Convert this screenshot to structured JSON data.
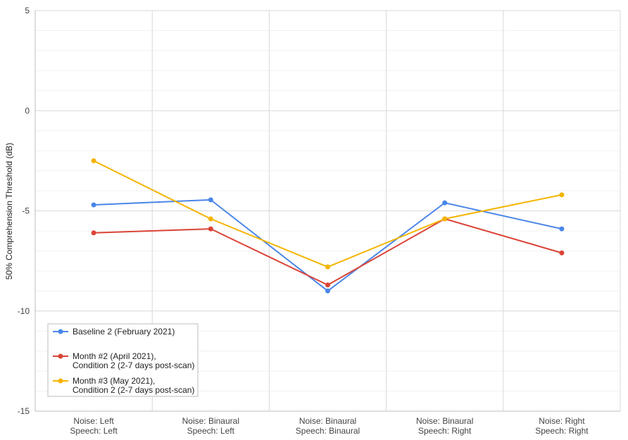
{
  "chart_data": {
    "type": "line",
    "categories": [
      [
        "Noise: Left",
        "Speech: Left"
      ],
      [
        "Noise: Binaural",
        "Speech: Left"
      ],
      [
        "Noise: Binaural",
        "Speech: Binaural"
      ],
      [
        "Noise: Binaural",
        "Speech: Right"
      ],
      [
        "Noise: Right",
        "Speech: Right"
      ]
    ],
    "ylabel": "50% Comprehension  Threshold  (dB)",
    "xlabel": "",
    "ylim": [
      -15,
      5
    ],
    "yticks": [
      "5",
      "0",
      "-5",
      "-10",
      "-15"
    ],
    "ytick_values": [
      5,
      0,
      -5,
      -10,
      -15
    ],
    "grid": true,
    "legend_position": "bottom-left",
    "series": [
      {
        "name": [
          "Baseline 2 (February 2021)"
        ],
        "color": "#4a86e8",
        "values": [
          -4.7,
          -4.45,
          -9.0,
          -4.6,
          -5.9
        ]
      },
      {
        "name": [
          "Month #2 (April 2021),",
          "Condition 2 (2-7 days post-scan)"
        ],
        "color": "#db4437",
        "values": [
          -6.1,
          -5.9,
          -8.7,
          -5.4,
          -7.1
        ]
      },
      {
        "name": [
          "Month #3 (May 2021),",
          "Condition 2 (2-7 days post-scan)"
        ],
        "color": "#f4b400",
        "values": [
          -2.5,
          -5.4,
          -7.8,
          -5.4,
          -4.2
        ]
      }
    ]
  }
}
